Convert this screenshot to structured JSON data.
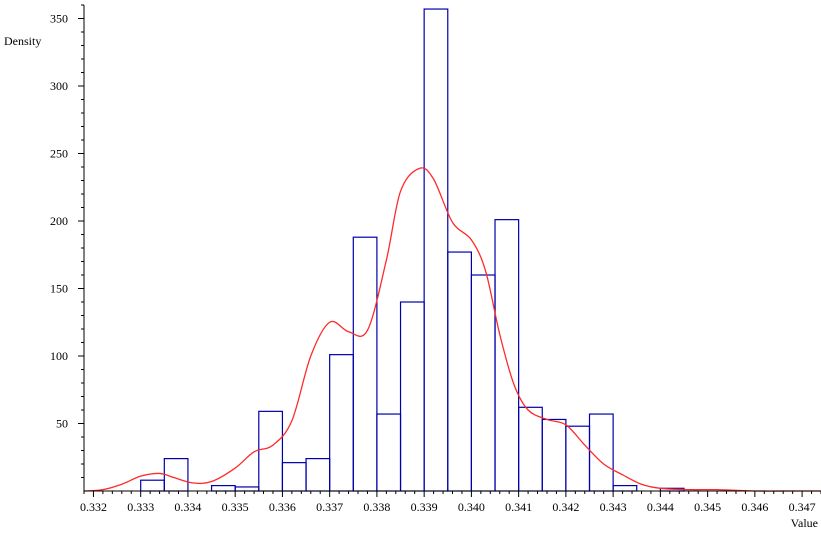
{
  "chart_data": {
    "type": "bar",
    "title": "",
    "xlabel": "Value",
    "ylabel": "Density",
    "xlim": [
      0.3318,
      0.3474
    ],
    "ylim": [
      0,
      360
    ],
    "grid": false,
    "x_ticks": [
      0.332,
      0.333,
      0.334,
      0.335,
      0.336,
      0.337,
      0.338,
      0.339,
      0.34,
      0.341,
      0.342,
      0.343,
      0.344,
      0.345,
      0.346,
      0.347
    ],
    "x_tick_labels": [
      "0.332",
      "0.333",
      "0.334",
      "0.335",
      "0.336",
      "0.337",
      "0.338",
      "0.339",
      "0.340",
      "0.341",
      "0.342",
      "0.343",
      "0.344",
      "0.345",
      "0.346",
      "0.347"
    ],
    "y_ticks": [
      50,
      100,
      150,
      200,
      250,
      300,
      350
    ],
    "y_tick_labels": [
      "50",
      "100",
      "150",
      "200",
      "250",
      "300",
      "350"
    ],
    "histogram": {
      "color": "#0000aa",
      "bin_width": 0.0005,
      "bins": [
        {
          "start": 0.333,
          "value": 8
        },
        {
          "start": 0.3335,
          "value": 24
        },
        {
          "start": 0.3345,
          "value": 4
        },
        {
          "start": 0.335,
          "value": 3
        },
        {
          "start": 0.3355,
          "value": 59
        },
        {
          "start": 0.336,
          "value": 21
        },
        {
          "start": 0.3365,
          "value": 24
        },
        {
          "start": 0.337,
          "value": 101
        },
        {
          "start": 0.3375,
          "value": 188
        },
        {
          "start": 0.338,
          "value": 57
        },
        {
          "start": 0.3385,
          "value": 140
        },
        {
          "start": 0.339,
          "value": 357
        },
        {
          "start": 0.3395,
          "value": 177
        },
        {
          "start": 0.34,
          "value": 160
        },
        {
          "start": 0.3405,
          "value": 201
        },
        {
          "start": 0.341,
          "value": 62
        },
        {
          "start": 0.3415,
          "value": 53
        },
        {
          "start": 0.342,
          "value": 48
        },
        {
          "start": 0.3425,
          "value": 57
        },
        {
          "start": 0.343,
          "value": 4
        },
        {
          "start": 0.344,
          "value": 2
        }
      ]
    },
    "density_curve": {
      "color": "#ff2a2a",
      "x": [
        0.3318,
        0.3322,
        0.3326,
        0.333,
        0.3334,
        0.3337,
        0.3341,
        0.3345,
        0.335,
        0.3354,
        0.3358,
        0.3362,
        0.3366,
        0.337,
        0.3374,
        0.3378,
        0.3382,
        0.3385,
        0.3389,
        0.3392,
        0.3396,
        0.34,
        0.3403,
        0.3406,
        0.3409,
        0.3412,
        0.3416,
        0.342,
        0.3424,
        0.3428,
        0.3432,
        0.3436,
        0.344,
        0.3446,
        0.3452,
        0.346,
        0.3468,
        0.3474
      ],
      "y": [
        0,
        1,
        5,
        11,
        13,
        10,
        6,
        7,
        17,
        29,
        34,
        52,
        100,
        125,
        118,
        119,
        171,
        222,
        239,
        231,
        199,
        186,
        163,
        116,
        79,
        60,
        53,
        49,
        34,
        20,
        12,
        5,
        2,
        1,
        1,
        0,
        0,
        0
      ]
    }
  }
}
